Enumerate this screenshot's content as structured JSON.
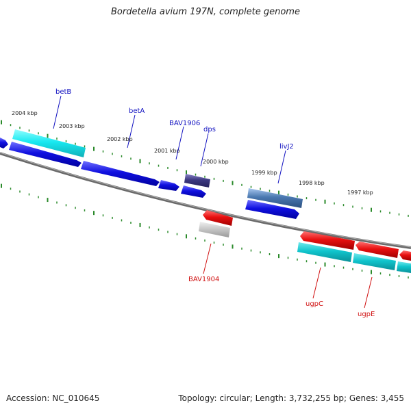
{
  "title": "Bordetella avium 197N, complete genome",
  "footer": {
    "accession": "Accession: NC_010645",
    "summary": "Topology: circular; Length: 3,732,255 bp; Genes: 3,455"
  },
  "colors": {
    "forward_gene": "#1010e0",
    "reverse_gene": "#e01010",
    "forward_cds": "#10e0e8",
    "reverse_cds": "#10c0c8",
    "trna": "#3c3880",
    "rrna_like": "#4a78b0",
    "pseudo": "#bdbdbd",
    "backbone": "#808080",
    "tick": "#2a8a2a",
    "forward_label": "#1010c0",
    "reverse_label": "#d01010"
  },
  "scale": {
    "unit": "kbp",
    "ticks": [
      "2004 kbp",
      "2003 kbp",
      "2002 kbp",
      "2001 kbp",
      "2000 kbp",
      "1999 kbp",
      "1998 kbp",
      "1997 kbp"
    ]
  },
  "gene_labels": {
    "betB": "betB",
    "betA": "betA",
    "BAV1906": "BAV1906",
    "dps": "dps",
    "livJ2": "livJ2",
    "BAV1904": "BAV1904",
    "ugpC": "ugpC",
    "ugpE": "ugpE"
  }
}
